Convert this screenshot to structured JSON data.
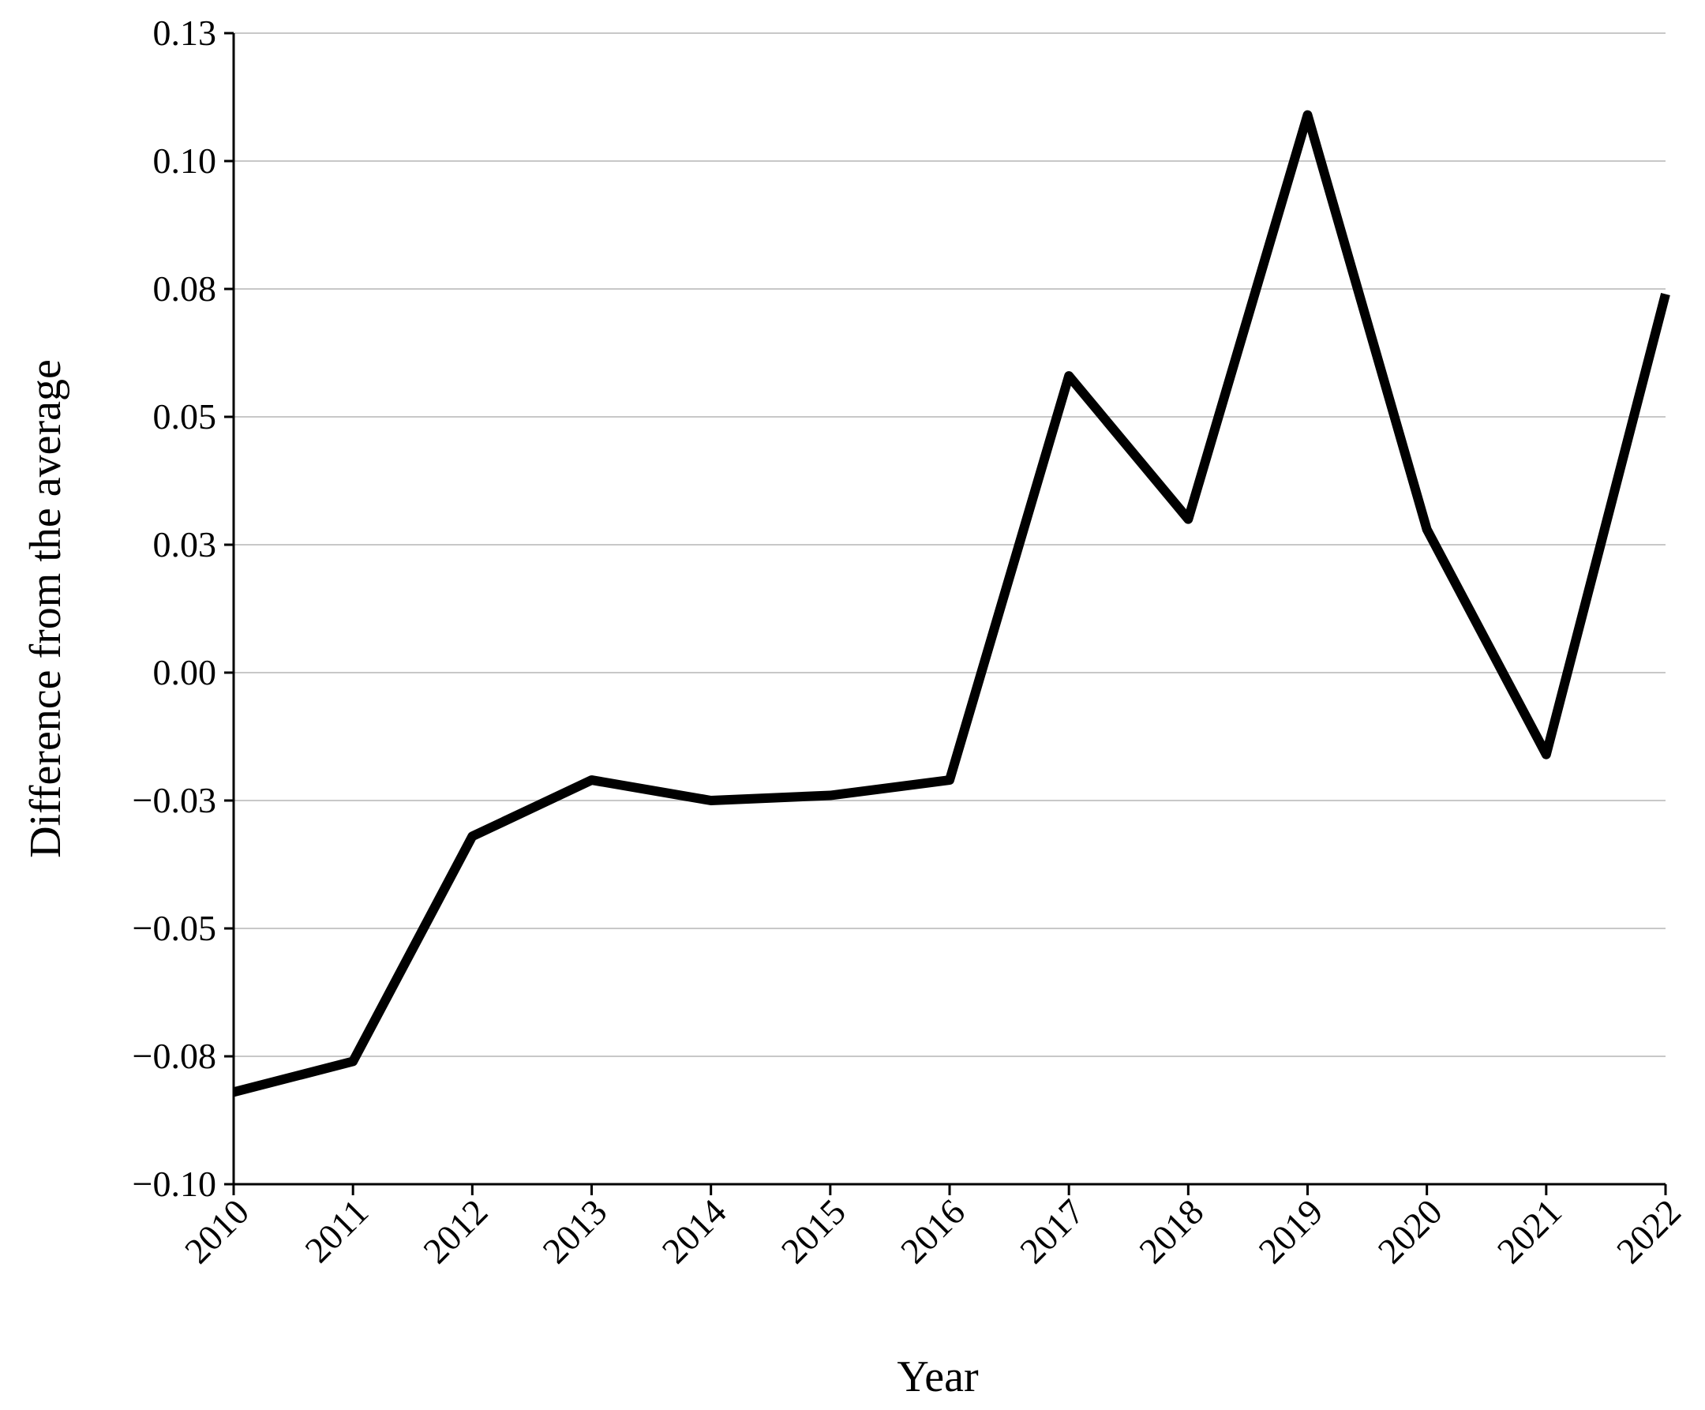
{
  "chart_data": {
    "type": "line",
    "x_label": "Year",
    "y_label": "Difference from the average",
    "categories": [
      "2010",
      "2011",
      "2012",
      "2013",
      "2014",
      "2015",
      "2016",
      "2017",
      "2018",
      "2019",
      "2020",
      "2021",
      "2022"
    ],
    "series": [
      {
        "color": "#000000",
        "values": [
          -0.082,
          -0.076,
          -0.032,
          -0.021,
          -0.025,
          -0.024,
          -0.021,
          0.058,
          0.03,
          0.109,
          0.028,
          -0.016,
          0.074
        ]
      }
    ],
    "ylim": [
      -0.1,
      0.125
    ],
    "yticks": [
      {
        "value": -0.1,
        "label": "−0.10"
      },
      {
        "value": -0.075,
        "label": "−0.08"
      },
      {
        "value": -0.05,
        "label": "−0.05"
      },
      {
        "value": -0.025,
        "label": "−0.03"
      },
      {
        "value": 0,
        "label": "0.00"
      },
      {
        "value": 0.025,
        "label": "0.03"
      },
      {
        "value": 0.05,
        "label": "0.05"
      },
      {
        "value": 0.075,
        "label": "0.08"
      },
      {
        "value": 0.1,
        "label": "0.10"
      },
      {
        "value": 0.125,
        "label": "0.13"
      }
    ],
    "grid": true
  }
}
